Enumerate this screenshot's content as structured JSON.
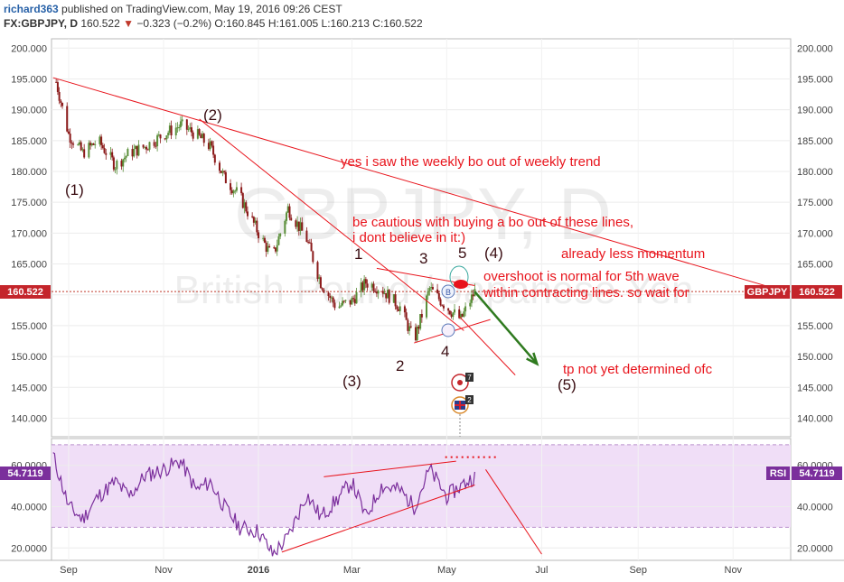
{
  "header": {
    "user": "richard363",
    "published": "published on TradingView.com, May 19, 2016 09:26 CEST",
    "symbol": "FX:GBPJPY, D",
    "last": "160.522",
    "change": "−0.323 (−0.2%)",
    "open": "O:160.845",
    "high": "H:161.005",
    "low": "L:160.213",
    "close": "C:160.522"
  },
  "watermark": {
    "line1": "GBPJPY, D",
    "line2": "British Pound / Japanese Yen"
  },
  "price_axis": {
    "ticks": [
      "200.000",
      "195.000",
      "190.000",
      "185.000",
      "180.000",
      "175.000",
      "170.000",
      "165.000",
      "160.000",
      "155.000",
      "150.000",
      "145.000",
      "140.000"
    ],
    "current": "160.522",
    "symbol_badge": "GBPJPY"
  },
  "rsi_axis": {
    "ticks": [
      "60.0000",
      "40.0000",
      "20.0000"
    ],
    "current": "54.7119",
    "label": "RSI"
  },
  "time_axis": {
    "labels": [
      "Sep",
      "Nov",
      "2016",
      "Mar",
      "May",
      "Jul",
      "Sep",
      "Nov"
    ]
  },
  "annotations": {
    "weekly_bo": "yes i saw the weekly bo out of weekly trend",
    "cautious1": "be cautious with buying a bo out of these lines,",
    "cautious2": "i dont believe in it:)",
    "momentum": "already less momentum",
    "overshoot1": "overshoot is normal for 5th wave",
    "overshoot2": "within contracting lines. so wait for",
    "tp": "tp not yet determined ofc",
    "wave1": "(1)",
    "wave2": "(2)",
    "wave3": "(3)",
    "wave4": "(4)",
    "wave5": "(5)",
    "sub1": "1",
    "sub2": "2",
    "sub3": "3",
    "sub4": "4",
    "sub5": "5",
    "event_b": "B",
    "event_badge1": "7",
    "event_badge2": "2"
  },
  "colors": {
    "up": "#5b8f3a",
    "down": "#8b1a1a",
    "annotation": "#e8141c",
    "wave": "#3a0d12",
    "arrow": "#2f7a1f",
    "rsi_line": "#7b2f9c",
    "rsi_band": "#f0def7",
    "badge_bg": "#c4252b",
    "rsi_badge_bg": "#7b2f9c"
  },
  "chart_data": [
    {
      "type": "candlestick",
      "title": "FX:GBPJPY, D",
      "ylim": [
        137,
        201.5
      ],
      "close_series_dates": [
        "2015-08-24",
        "2015-09-01",
        "2015-09-10",
        "2015-09-20",
        "2015-10-01",
        "2015-10-10",
        "2015-10-20",
        "2015-11-01",
        "2015-11-12",
        "2015-11-22",
        "2015-12-01",
        "2015-12-10",
        "2015-12-20",
        "2016-01-01",
        "2016-01-10",
        "2016-01-20",
        "2016-02-01",
        "2016-02-10",
        "2016-02-20",
        "2016-03-01",
        "2016-03-10",
        "2016-03-20",
        "2016-04-01",
        "2016-04-10",
        "2016-04-20",
        "2016-05-01",
        "2016-05-10",
        "2016-05-19"
      ],
      "close_series_values": [
        194.5,
        186,
        183,
        185,
        181,
        183,
        184,
        186,
        187.5,
        186,
        184,
        179,
        176,
        170,
        166,
        174,
        169,
        162,
        158,
        159,
        162,
        161,
        158,
        152.5,
        161,
        158,
        156,
        160.5
      ],
      "pivots": [
        {
          "label": "(1)",
          "date": "2015-09-03",
          "price": 180.5
        },
        {
          "label": "(2)",
          "date": "2015-11-16",
          "price": 188.5
        },
        {
          "label": "1",
          "date": "2016-03-18",
          "price": 164
        },
        {
          "label": "2",
          "date": "2016-04-10",
          "price": 151
        },
        {
          "label": "3",
          "date": "2016-04-27",
          "price": 163
        },
        {
          "label": "4",
          "date": "2016-05-09",
          "price": 153.5
        },
        {
          "label": "5",
          "date": "2016-05-19",
          "price": 161
        }
      ],
      "trendlines": [
        {
          "from": {
            "date": "2015-08-22",
            "price": 195.2
          },
          "to": {
            "date": "2016-12-05",
            "price": 160.5
          }
        },
        {
          "from": {
            "date": "2015-11-24",
            "price": 188.5
          },
          "to": {
            "date": "2016-05-12",
            "price": 154.2
          }
        },
        {
          "from": {
            "date": "2016-03-17",
            "price": 164.3
          },
          "to": {
            "date": "2016-05-19",
            "price": 161.5
          }
        },
        {
          "from": {
            "date": "2016-04-10",
            "price": 152.2
          },
          "to": {
            "date": "2016-05-29",
            "price": 156.0
          }
        },
        {
          "from": {
            "date": "2016-05-09",
            "price": 156.5
          },
          "to": {
            "date": "2016-06-14",
            "price": 147.0
          }
        }
      ],
      "projection_arrow": {
        "from": {
          "date": "2016-05-19",
          "price": 160.5
        },
        "to": {
          "date": "2016-06-28",
          "price": 148.8
        }
      }
    },
    {
      "type": "line",
      "title": "RSI",
      "ylim": [
        14,
        73
      ],
      "band": [
        30,
        70
      ],
      "series": [
        {
          "name": "RSI",
          "x": [
            "2015-08-22",
            "2015-09-01",
            "2015-09-10",
            "2015-09-20",
            "2015-10-01",
            "2015-10-10",
            "2015-10-20",
            "2015-11-01",
            "2015-11-12",
            "2015-11-22",
            "2015-12-01",
            "2015-12-10",
            "2015-12-20",
            "2016-01-01",
            "2016-01-10",
            "2016-01-20",
            "2016-02-01",
            "2016-02-10",
            "2016-02-20",
            "2016-03-01",
            "2016-03-10",
            "2016-03-20",
            "2016-04-01",
            "2016-04-10",
            "2016-04-20",
            "2016-05-01",
            "2016-05-10",
            "2016-05-19"
          ],
          "values": [
            65,
            40,
            34,
            45,
            52,
            45,
            55,
            58,
            62,
            48,
            52,
            40,
            30,
            28,
            17,
            25,
            46,
            35,
            43,
            52,
            35,
            50,
            48,
            40,
            58,
            45,
            50,
            54.7
          ]
        }
      ],
      "trendlines": [
        {
          "from": {
            "date": "2016-01-16",
            "price": 18
          },
          "to": {
            "date": "2016-05-19",
            "price": 50.5
          }
        },
        {
          "from": {
            "date": "2016-02-12",
            "price": 54.5
          },
          "to": {
            "date": "2016-05-07",
            "price": 62.0
          }
        },
        {
          "from": {
            "date": "2016-05-26",
            "price": 58
          },
          "to": {
            "date": "2016-07-01",
            "price": 17
          }
        }
      ],
      "dotted_level": {
        "from": "2016-04-30",
        "to": "2016-06-03",
        "value": 64
      }
    }
  ]
}
